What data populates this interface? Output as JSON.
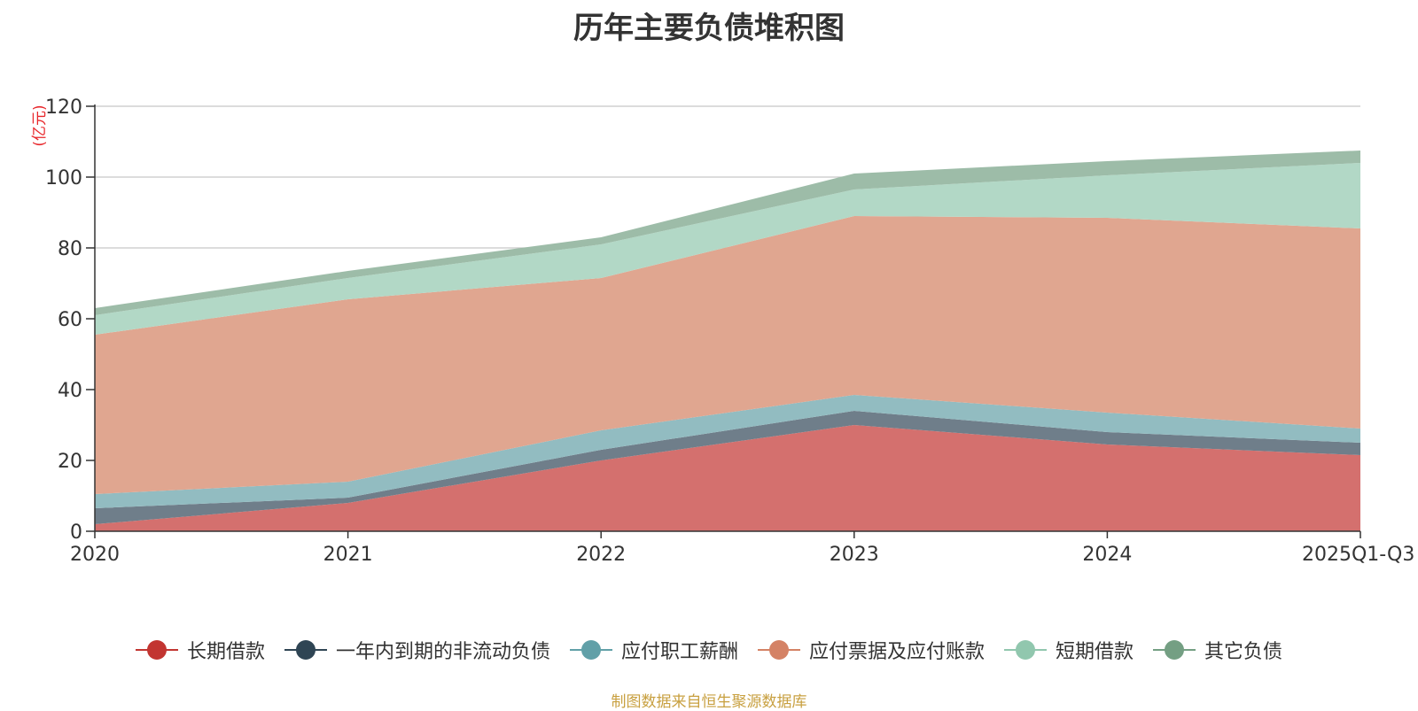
{
  "source_note": "制图数据来自恒生聚源数据库",
  "chart_data": {
    "type": "area",
    "stacked": true,
    "title": "历年主要负债堆积图",
    "ylabel": "(亿元)",
    "xlabel": "",
    "ylim": [
      0,
      120
    ],
    "yticks": [
      0,
      20,
      40,
      60,
      80,
      100,
      120
    ],
    "categories": [
      "2020",
      "2021",
      "2022",
      "2023",
      "2024",
      "2025Q1-Q3"
    ],
    "legend_position": "bottom",
    "grid": true,
    "series": [
      {
        "name": "长期借款",
        "color": "#c23531",
        "area_color": "#d4706e",
        "values": [
          2,
          8,
          20,
          30,
          24.5,
          21.5
        ]
      },
      {
        "name": "一年内到期的非流动负债",
        "color": "#2f4554",
        "area_color": "#6f7e8a",
        "values": [
          4.5,
          1.5,
          3,
          4,
          3.5,
          3.5
        ]
      },
      {
        "name": "应付职工薪酬",
        "color": "#61a0a8",
        "area_color": "#92bcc1",
        "values": [
          4,
          4.5,
          5.5,
          4.5,
          5.5,
          4
        ]
      },
      {
        "name": "应付票据及应付账款",
        "color": "#d48265",
        "area_color": "#e0a690",
        "values": [
          45,
          51.5,
          43,
          50.5,
          55,
          56.5
        ]
      },
      {
        "name": "短期借款",
        "color": "#91c7ae",
        "area_color": "#b2d8c6",
        "values": [
          5.5,
          6,
          9.5,
          7.5,
          12,
          18.5
        ]
      },
      {
        "name": "其它负债",
        "color": "#749f83",
        "area_color": "#9dbca8",
        "values": [
          2,
          2,
          2,
          4.5,
          4,
          3.5
        ]
      }
    ]
  }
}
